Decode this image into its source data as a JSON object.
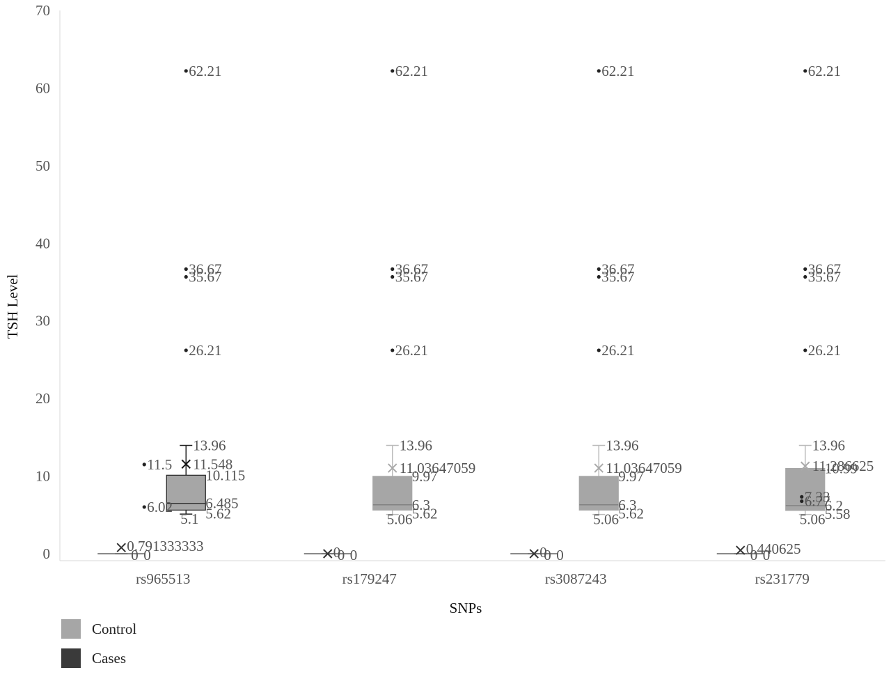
{
  "chart_data": {
    "type": "box",
    "xlabel": "SNPs",
    "ylabel": "TSH Level",
    "ylim": [
      0,
      70
    ],
    "yticks": [
      0,
      10,
      20,
      30,
      40,
      50,
      60,
      70
    ],
    "grid": false,
    "legend_position": "bottom-left",
    "categories": [
      "rs965513",
      "rs179247",
      "rs3087243",
      "rs231779"
    ],
    "series": [
      {
        "name": "Control",
        "color": "#a6a6a6"
      },
      {
        "name": "Cases",
        "color": "#3a3a3a"
      }
    ],
    "boxes": [
      {
        "category": "rs965513",
        "series": "Control",
        "min": 5.1,
        "q1": 5.62,
        "median": 6.485,
        "q3": 10.115,
        "max": 13.96,
        "mean": 11.548,
        "mean_label": "11.548",
        "min_label": "5.1",
        "q1_label": "5.62",
        "median_label": "6.485",
        "q3_label": "10.115",
        "max_label": "13.96"
      },
      {
        "category": "rs965513",
        "series": "Cases",
        "min": 0,
        "q1": 0,
        "median": 0,
        "q3": 0,
        "max": 0,
        "mean": 0.791333333,
        "mean_label": "0.791333333",
        "min_label": "0",
        "q1_label": "0"
      },
      {
        "category": "rs179247",
        "series": "Control",
        "min": 5.06,
        "q1": 5.62,
        "median": 6.3,
        "q3": 9.97,
        "max": 13.96,
        "mean": 11.03647059,
        "mean_label": "11.03647059",
        "min_label": "5.06",
        "q1_label": "5.62",
        "median_label": "6.3",
        "q3_label": "9.97",
        "max_label": "13.96"
      },
      {
        "category": "rs179247",
        "series": "Cases",
        "min": 0,
        "q1": 0,
        "median": 0,
        "q3": 0,
        "max": 0,
        "mean": 0,
        "mean_label": "0",
        "min_label": "0",
        "q1_label": "0"
      },
      {
        "category": "rs3087243",
        "series": "Control",
        "min": 5.06,
        "q1": 5.62,
        "median": 6.3,
        "q3": 9.97,
        "max": 13.96,
        "mean": 11.03647059,
        "mean_label": "11.03647059",
        "min_label": "5.06",
        "q1_label": "5.62",
        "median_label": "6.3",
        "q3_label": "9.97",
        "max_label": "13.96"
      },
      {
        "category": "rs3087243",
        "series": "Cases",
        "min": 0,
        "q1": 0,
        "median": 0,
        "q3": 0,
        "max": 0,
        "mean": 0,
        "mean_label": "0",
        "min_label": "0",
        "q1_label": "0"
      },
      {
        "category": "rs231779",
        "series": "Control",
        "min": 5.06,
        "q1": 5.58,
        "median": 6.2,
        "q3": 10.99,
        "max": 13.96,
        "mean": 11.286625,
        "mean_label": "11.286625",
        "min_label": "5.06",
        "q1_label": "5.58",
        "median_label": "6.2",
        "q3_label": "10.99",
        "max_label": "13.96"
      },
      {
        "category": "rs231779",
        "series": "Cases",
        "min": 0,
        "q1": 0,
        "median": 0,
        "q3": 0,
        "max": 0,
        "mean": 0.440625,
        "mean_label": "0.440625",
        "min_label": "0",
        "q1_label": "0"
      }
    ],
    "outliers": [
      {
        "category": "rs965513",
        "series": "Control",
        "value": 62.21,
        "label": "62.21"
      },
      {
        "category": "rs965513",
        "series": "Control",
        "value": 36.67,
        "label": "36.67"
      },
      {
        "category": "rs965513",
        "series": "Control",
        "value": 35.67,
        "label": "35.67"
      },
      {
        "category": "rs965513",
        "series": "Control",
        "value": 26.21,
        "label": "26.21"
      },
      {
        "category": "rs965513",
        "series": "Control",
        "value": 11.5,
        "label": "11.5"
      },
      {
        "category": "rs965513",
        "series": "Control",
        "value": 6.02,
        "label": "6.02"
      },
      {
        "category": "rs179247",
        "series": "Control",
        "value": 62.21,
        "label": "62.21"
      },
      {
        "category": "rs179247",
        "series": "Control",
        "value": 36.67,
        "label": "36.67"
      },
      {
        "category": "rs179247",
        "series": "Control",
        "value": 35.67,
        "label": "35.67"
      },
      {
        "category": "rs179247",
        "series": "Control",
        "value": 26.21,
        "label": "26.21"
      },
      {
        "category": "rs3087243",
        "series": "Control",
        "value": 62.21,
        "label": "62.21"
      },
      {
        "category": "rs3087243",
        "series": "Control",
        "value": 36.67,
        "label": "36.67"
      },
      {
        "category": "rs3087243",
        "series": "Control",
        "value": 35.67,
        "label": "35.67"
      },
      {
        "category": "rs3087243",
        "series": "Control",
        "value": 26.21,
        "label": "26.21"
      },
      {
        "category": "rs231779",
        "series": "Control",
        "value": 62.21,
        "label": "62.21"
      },
      {
        "category": "rs231779",
        "series": "Control",
        "value": 36.67,
        "label": "36.67"
      },
      {
        "category": "rs231779",
        "series": "Control",
        "value": 35.67,
        "label": "35.67"
      },
      {
        "category": "rs231779",
        "series": "Control",
        "value": 26.21,
        "label": "26.21"
      },
      {
        "category": "rs231779",
        "series": "Cases",
        "value": 7.33,
        "label": "7.33"
      },
      {
        "category": "rs231779",
        "series": "Cases",
        "value": 6.77,
        "label": "6.77"
      }
    ]
  }
}
